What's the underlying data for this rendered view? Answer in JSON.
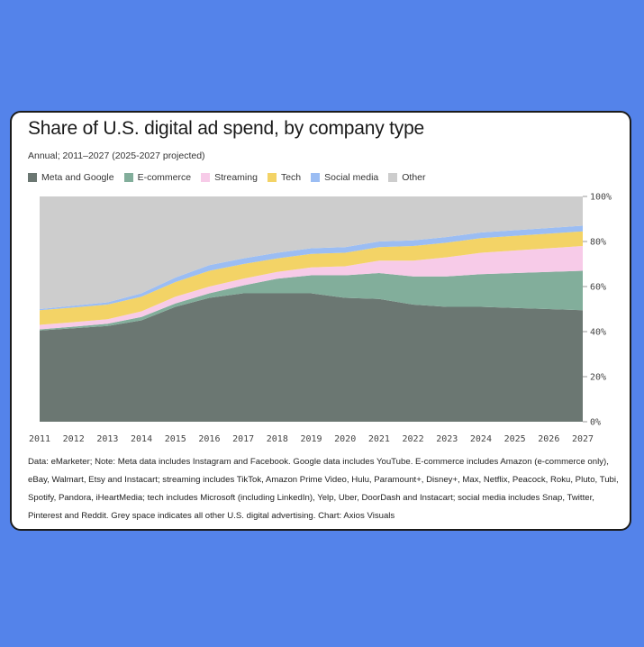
{
  "card": {
    "title": "Share of U.S. digital ad spend, by company type",
    "subtitle": "Annual; 2011–2027 (2025-2027 projected)",
    "note": "Data: eMarketer; Note: Meta data includes Instagram and Facebook. Google data includes YouTube. E-commerce includes Amazon (e-commerce only), eBay, Walmart, Etsy and Instacart; streaming includes TikTok, Amazon Prime Video, Hulu, Paramount+, Disney+, Max, Netflix, Peacock, Roku, Pluto, Tubi, Spotify, Pandora, iHeartMedia; tech includes Microsoft (including LinkedIn), Yelp, Uber, DoorDash and Instacart; social media includes Snap, Twitter, Pinterest and Reddit. Grey space indicates all other U.S. digital advertising. Chart: Axios Visuals"
  },
  "legend": [
    {
      "label": "Meta and Google",
      "color": "#6b7772"
    },
    {
      "label": "E-commerce",
      "color": "#82ae9b"
    },
    {
      "label": "Streaming",
      "color": "#f7cbe8"
    },
    {
      "label": "Tech",
      "color": "#f3d366"
    },
    {
      "label": "Social media",
      "color": "#9bbdf3"
    },
    {
      "label": "Other",
      "color": "#cdcdcd"
    }
  ],
  "chart_data": {
    "type": "area",
    "stacked": true,
    "x": [
      2011,
      2012,
      2013,
      2014,
      2015,
      2016,
      2017,
      2018,
      2019,
      2020,
      2021,
      2022,
      2023,
      2024,
      2025,
      2026,
      2027
    ],
    "series": [
      {
        "name": "Meta and Google",
        "color": "#6b7772",
        "values": [
          40.5,
          41.5,
          42.5,
          45,
          51,
          55,
          57,
          57,
          57,
          55,
          54.5,
          52,
          51,
          51,
          50.5,
          50,
          49.5
        ]
      },
      {
        "name": "E-commerce",
        "color": "#82ae9b",
        "values": [
          0.5,
          0.7,
          1,
          1.5,
          1.5,
          2,
          3.5,
          6.5,
          8,
          10,
          11.5,
          12.5,
          13.5,
          14.5,
          15.5,
          16.5,
          17.5
        ]
      },
      {
        "name": "Streaming",
        "color": "#f7cbe8",
        "values": [
          2,
          2,
          2,
          2.5,
          3,
          3,
          3,
          3,
          3.5,
          4,
          5.5,
          7,
          8.5,
          9.5,
          10,
          10.5,
          11
        ]
      },
      {
        "name": "Tech",
        "color": "#f3d366",
        "values": [
          6.5,
          6.5,
          6.5,
          6.5,
          6.5,
          7,
          6.5,
          6,
          6,
          6,
          6,
          6.5,
          6.5,
          6.5,
          6.5,
          6.5,
          6.5
        ]
      },
      {
        "name": "Social media",
        "color": "#9bbdf3",
        "values": [
          0.5,
          0.8,
          1,
          1.5,
          2,
          2.5,
          2.5,
          2.5,
          2.5,
          2.5,
          2.5,
          2.5,
          2.5,
          2.5,
          2.5,
          2.5,
          2.5
        ]
      },
      {
        "name": "Other",
        "color": "#cdcdcd",
        "values": [
          50,
          48.5,
          47,
          43,
          36,
          30.5,
          27.5,
          25,
          23,
          22.5,
          20,
          19.5,
          18,
          16,
          15,
          14,
          13
        ]
      }
    ],
    "yticks": [
      "0%",
      "20%",
      "40%",
      "60%",
      "80%",
      "100%"
    ],
    "ylim": [
      0,
      100
    ]
  }
}
